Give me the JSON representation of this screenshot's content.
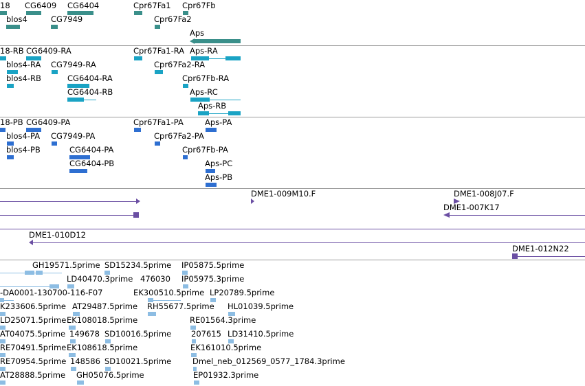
{
  "colors": {
    "gene": "#3a8f8a",
    "mrna": "#1aa3c4",
    "protein": "#2e6fd1",
    "bac": "#6b4fa3",
    "est": "#8dbde3",
    "separator": "#9a9a9a"
  },
  "gene_track": {
    "labels": [
      "18",
      "CG6409",
      "CG6404",
      "Cpr67Fa1",
      "Cpr67Fb",
      "blos4",
      "CG7949",
      "Cpr67Fa2",
      "Aps"
    ]
  },
  "mrna_track": {
    "labels": [
      "18-RB",
      "CG6409-RA",
      "Cpr67Fa1-RA",
      "Aps-RA",
      "blos4-RA",
      "CG7949-RA",
      "Cpr67Fa2-RA",
      "blos4-RB",
      "CG6404-RA",
      "Cpr67Fb-RA",
      "CG6404-RB",
      "Aps-RC",
      "Aps-RB"
    ]
  },
  "protein_track": {
    "labels": [
      "18-PB",
      "CG6409-PA",
      "Cpr67Fa1-PA",
      "Aps-PA",
      "blos4-PA",
      "CG7949-PA",
      "Cpr67Fa2-PA",
      "blos4-PB",
      "CG6404-PA",
      "Cpr67Fb-PA",
      "CG6404-PB",
      "Aps-PC",
      "Aps-PB"
    ]
  },
  "bac_track": {
    "labels": [
      "DME1-009M10.F",
      "DME1-008J07.F",
      "DME1-007K17",
      "DME1-010D12",
      "DME1-012N22"
    ]
  },
  "est_track": {
    "labels": [
      "GH19571.5prime",
      "SD15234.5prime",
      "IP05875.5prime",
      "LD40470.3prime",
      "476030",
      "IP05975.3prime",
      "-DA0001-130700-116-F07",
      "EK300510.5prime",
      "LP20789.5prime",
      "K233606.5prime",
      "AT29487.5prime",
      "RH55677.5prime",
      "HL01039.5prime",
      "LD25071.5prime",
      "EK108018.5prime",
      "RE01564.3prime",
      "AT04075.5prime",
      "149678",
      "SD10016.5prime",
      "207615",
      "LD31410.5prime",
      "RE70491.5prime",
      "EK108618.5prime",
      "EK161010.5prime",
      "RE70954.5prime",
      "148586",
      "SD10021.5prime",
      "Dmel_neb_012569_0577_1784.3prime",
      "AT28888.5prime",
      "GH05076.5prime",
      "EP01932.3prime"
    ]
  }
}
